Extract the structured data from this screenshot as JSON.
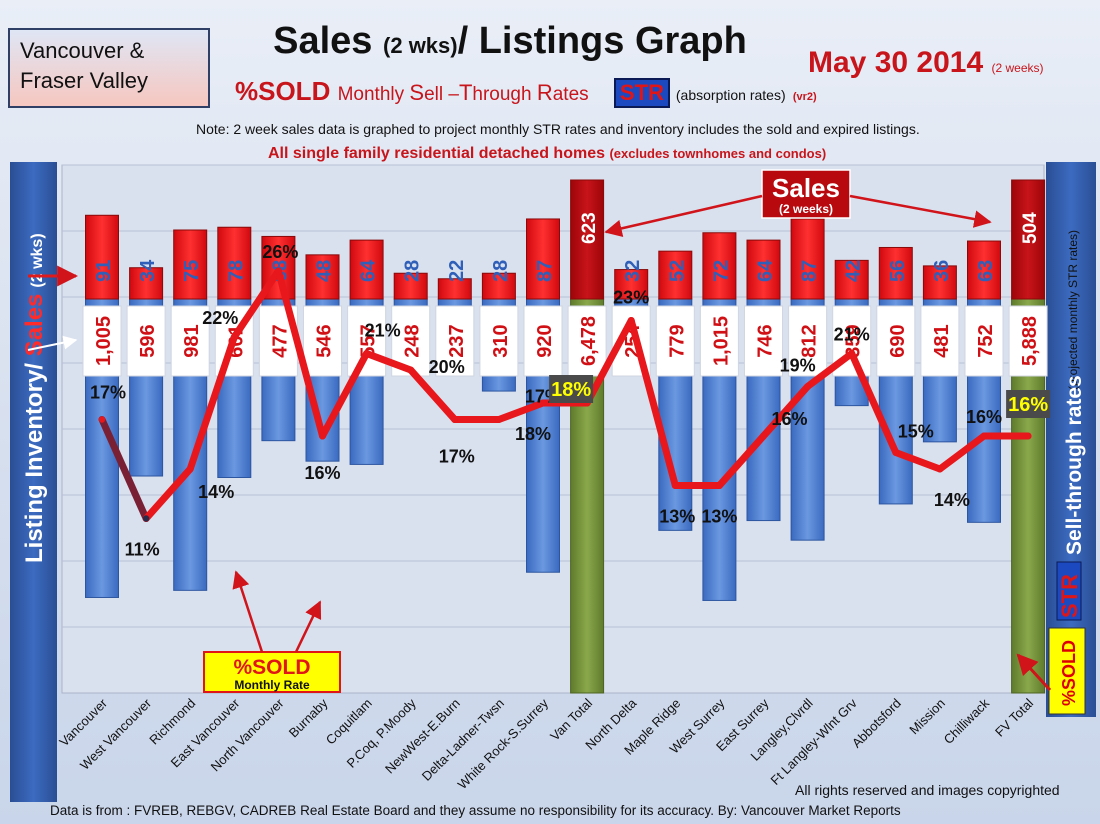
{
  "header": {
    "region_line1": "Vancouver &",
    "region_line2": "Fraser Valley",
    "title_a": "Sales ",
    "title_b": "(2 wks)",
    "title_c": "/ Listings Graph",
    "date": "May 30 2014",
    "date_note": "(2 weeks)",
    "sub_a": "%SOLD",
    "sub_b": "Monthly ",
    "sub_S": "S",
    "sub_c": "ell –",
    "sub_T": "T",
    "sub_d": "hrough ",
    "sub_R": "R",
    "sub_e": "ates",
    "str_badge": "STR",
    "absorption": "(absorption rates)",
    "version": "(vr2)",
    "note": "Note: 2 week sales data is graphed to project monthly STR rates and inventory includes the sold and expired listings.",
    "subnote": "All single family residential detached homes",
    "subnote_small": "(excludes townhomes and condos)"
  },
  "left_axis": {
    "inventory": "Listing Inventory/ ",
    "sales": "Sales",
    "period": "(2 wks)"
  },
  "right_axis": {
    "projected": "(projected monthly STR rates)",
    "label": "Sell-through rates",
    "str": "STR",
    "sold": "%SOLD"
  },
  "callouts": {
    "sales": "Sales",
    "sales_sub": "(2 weeks)",
    "sold": "%SOLD",
    "sold_sub": "Monthly Rate"
  },
  "footer": {
    "rights": "All rights reserved and  images copyrighted",
    "source": "Data is  from : FVREB, REBGV, CADREB Real Estate Board and they assume  no responsibility  for its accuracy. By: Vancouver Market Reports"
  },
  "colors": {
    "sales": "#ee1b1b",
    "total_sales": "#b8090f",
    "inventory": "#4f7fd2",
    "total_inventory": "#77933c",
    "line": "#e8171b",
    "title_red": "#c8151b",
    "highlight_yellow": "#ffff00"
  },
  "chart_data": {
    "type": "bar",
    "categories": [
      "Vancouver",
      "West Vancouver",
      "Richmond",
      "East Vancouver",
      "North Vancouver",
      "Burnaby",
      "Coquitlam",
      "P.Coq, P.Moody",
      "NewWest-E.Burn",
      "Delta-Ladner-Twsn",
      "White Rock-S.Surrey",
      "Van Total",
      "North Delta",
      "Maple Ridge",
      "West Surrey",
      "East Surrey",
      "Langley,Clvrdl",
      "Ft Langley-Wlnt Grv",
      "Abbotsford",
      "Mission",
      "Chilliwack",
      "FV Total"
    ],
    "series": [
      {
        "name": "Sales",
        "values": [
          91,
          34,
          75,
          78,
          68,
          48,
          64,
          28,
          22,
          28,
          87,
          623,
          32,
          52,
          72,
          64,
          87,
          42,
          56,
          36,
          63,
          504
        ]
      },
      {
        "name": "Listing Inventory",
        "values": [
          1005,
          596,
          981,
          601,
          477,
          546,
          557,
          248,
          237,
          310,
          920,
          6478,
          254,
          779,
          1015,
          746,
          812,
          359,
          690,
          481,
          752,
          5888
        ]
      },
      {
        "name": "%SOLD",
        "values": [
          17,
          11,
          14,
          22,
          26,
          16,
          21,
          20,
          17,
          17,
          18,
          18,
          23,
          13,
          13,
          16,
          19,
          21,
          15,
          14,
          16,
          16
        ]
      }
    ],
    "sales_labels": [
      "91",
      "34",
      "75",
      "78",
      "68",
      "48",
      "64",
      "28",
      "22",
      "28",
      "87",
      "623",
      "32",
      "52",
      "72",
      "64",
      "87",
      "42",
      "56",
      "36",
      "63",
      "504"
    ],
    "inventory_labels": [
      "1,005",
      "596",
      "981",
      "601",
      "477",
      "546",
      "557",
      "248",
      "237",
      "310",
      "920",
      "6,478",
      "254",
      "779",
      "1,015",
      "746",
      "812",
      "359",
      "690",
      "481",
      "752",
      "5,888"
    ],
    "pct_labels": [
      "17%",
      "11%",
      "14%",
      "22%",
      "26%",
      "16%",
      "21%",
      "20%",
      "17%",
      "17%",
      "18%",
      "18%",
      "23%",
      "13%",
      "13%",
      "16%",
      "19%",
      "21%",
      "15%",
      "14%",
      "16%",
      "16%"
    ],
    "totals": [
      "Van Total",
      "FV Total"
    ],
    "xlabel": "",
    "ylabel": "Listing Inventory/ Sales (2 wks)",
    "y2label": "STR Sell-through rates"
  }
}
